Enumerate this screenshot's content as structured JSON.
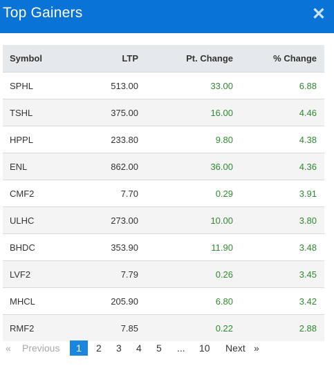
{
  "header": {
    "title": "Top Gainers",
    "close_icon": "close-icon"
  },
  "table": {
    "columns": [
      "Symbol",
      "LTP",
      "Pt. Change",
      "% Change"
    ],
    "rows": [
      [
        "SPHL",
        "513.00",
        "33.00",
        "6.88"
      ],
      [
        "TSHL",
        "375.00",
        "16.00",
        "4.46"
      ],
      [
        "HPPL",
        "233.80",
        "9.80",
        "4.38"
      ],
      [
        "ENL",
        "862.00",
        "36.00",
        "4.36"
      ],
      [
        "CMF2",
        "7.70",
        "0.29",
        "3.91"
      ],
      [
        "ULHC",
        "273.00",
        "10.00",
        "3.80"
      ],
      [
        "BHDC",
        "353.90",
        "11.90",
        "3.48"
      ],
      [
        "LVF2",
        "7.79",
        "0.26",
        "3.45"
      ],
      [
        "MHCL",
        "205.90",
        "6.80",
        "3.42"
      ],
      [
        "RMF2",
        "7.85",
        "0.22",
        "2.88"
      ]
    ]
  },
  "pagination": {
    "prev_arrow": "«",
    "prev": "Previous",
    "pages": [
      "1",
      "2",
      "3",
      "4",
      "5",
      "...",
      "10"
    ],
    "next": "Next",
    "next_arrow": "»",
    "current": "1"
  },
  "colors": {
    "header": "#0a73d6",
    "positive": "#2e8b2e",
    "active_page": "#1b86e0"
  }
}
